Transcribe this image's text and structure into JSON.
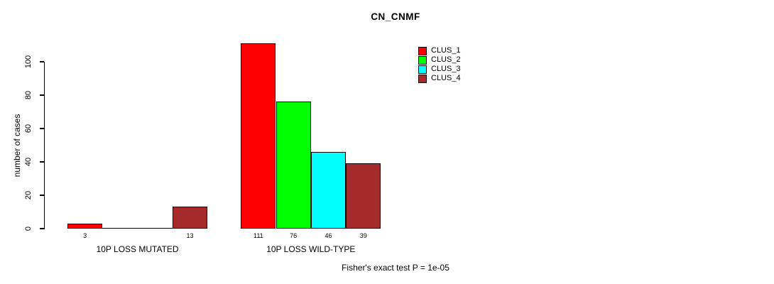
{
  "chart_data": {
    "type": "bar",
    "title": "CN_CNMF",
    "ylabel": "number of cases",
    "xlabel": "",
    "categories": [
      "10P LOSS MUTATED",
      "10P LOSS WILD-TYPE"
    ],
    "series": [
      {
        "name": "CLUS_1",
        "color": "#ff0000",
        "values": [
          3,
          111
        ]
      },
      {
        "name": "CLUS_2",
        "color": "#00ff00",
        "values": [
          0,
          76
        ]
      },
      {
        "name": "CLUS_3",
        "color": "#00ffff",
        "values": [
          0,
          46
        ]
      },
      {
        "name": "CLUS_4",
        "color": "#a52a2a",
        "values": [
          13,
          39
        ]
      }
    ],
    "bar_value_labels": [
      "3",
      "13",
      "111",
      "76",
      "46",
      "39"
    ],
    "yticks": [
      0,
      20,
      40,
      60,
      80,
      100
    ],
    "ylim": [
      0,
      117
    ],
    "grid": false,
    "legend_position": "top-right",
    "annotation": "Fisher's exact test P = 1e-05"
  }
}
